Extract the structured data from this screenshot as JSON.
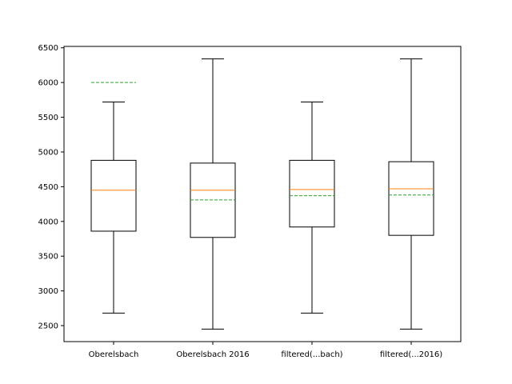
{
  "chart_data": {
    "type": "boxplot",
    "title": "",
    "xlabel": "",
    "ylabel": "",
    "ylim": [
      2270,
      6520
    ],
    "yticks": [
      2500,
      3000,
      3500,
      4000,
      4500,
      5000,
      5500,
      6000,
      6500
    ],
    "categories": [
      "Oberelsbach",
      "Oberelsbach 2016",
      "filtered(...bach)",
      "filtered(...2016)"
    ],
    "boxes": [
      {
        "whisker_low": 2680,
        "q1": 3860,
        "median": 4450,
        "q3": 4880,
        "whisker_high": 5720,
        "mean": 6000
      },
      {
        "whisker_low": 2450,
        "q1": 3770,
        "median": 4450,
        "q3": 4840,
        "whisker_high": 6340,
        "mean": 4310
      },
      {
        "whisker_low": 2680,
        "q1": 3920,
        "median": 4460,
        "q3": 4880,
        "whisker_high": 5720,
        "mean": 4370
      },
      {
        "whisker_low": 2450,
        "q1": 3800,
        "median": 4470,
        "q3": 4860,
        "whisker_high": 6340,
        "mean": 4380
      }
    ],
    "grid": false,
    "legend": "none",
    "colors": {
      "box": "#000000",
      "median": "#ff7f0e",
      "mean": "#2ca02c"
    }
  }
}
